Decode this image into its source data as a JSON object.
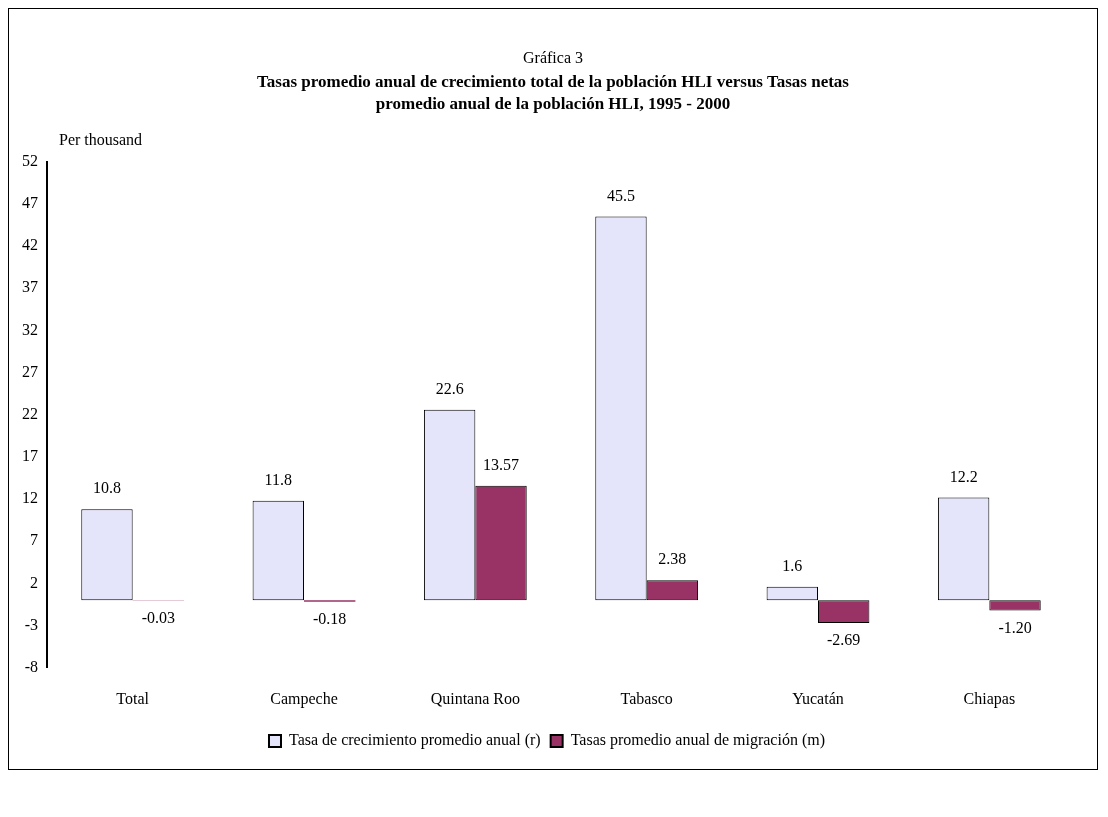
{
  "chart_data": {
    "type": "bar",
    "title": "Gráfica 3",
    "subtitle": "Tasas promedio anual de crecimiento total de la población HLI versus Tasas netas promedio anual de la población HLI, 1995 - 2000",
    "ylabel": "Per thousand",
    "categories": [
      "Total",
      "Campeche",
      "Quintana Roo",
      "Tabasco",
      "Yucatán",
      "Chiapas"
    ],
    "series": [
      {
        "name": "Tasa de crecimiento promedio anual (r)",
        "color": "#e4e4fa",
        "values": [
          10.8,
          11.8,
          22.6,
          45.5,
          1.6,
          12.2
        ],
        "value_labels": [
          "10.8",
          "11.8",
          "22.6",
          "45.5",
          "1.6",
          "12.2"
        ]
      },
      {
        "name": "Tasas promedio anual de migración (m)",
        "color": "#993366",
        "values": [
          -0.03,
          -0.18,
          13.57,
          2.38,
          -2.69,
          -1.2
        ],
        "value_labels": [
          "-0.03",
          "-0.18",
          "13.57",
          "2.38",
          "-2.69",
          "-1.20"
        ]
      }
    ],
    "ylim": [
      -8,
      52
    ],
    "yticks": [
      -8,
      -3,
      2,
      7,
      12,
      17,
      22,
      27,
      32,
      37,
      42,
      47,
      52
    ],
    "legend": "bottom"
  }
}
